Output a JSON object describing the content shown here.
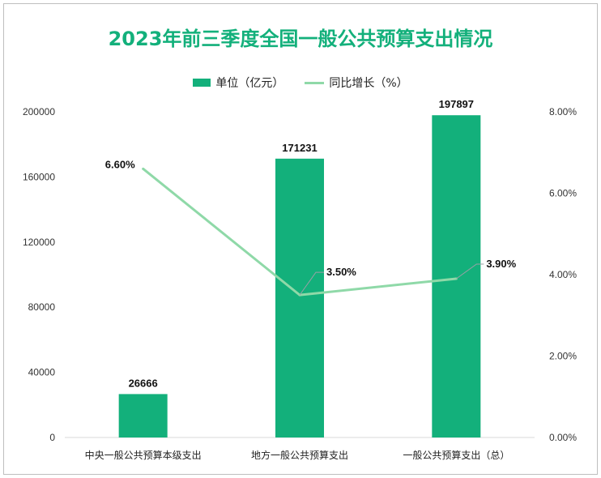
{
  "chart_data": {
    "type": "bar",
    "title": "2023年前三季度全国一般公共预算支出情况",
    "categories": [
      "中央一般公共预算本级支出",
      "地方一般公共预算支出",
      "一般公共预算支出（总）"
    ],
    "series": [
      {
        "name": "单位（亿元）",
        "type": "bar",
        "axis": "left",
        "values": [
          26666,
          171231,
          197897
        ],
        "labels": [
          "26666",
          "171231",
          "197897"
        ]
      },
      {
        "name": "同比增长（%）",
        "type": "line",
        "axis": "right",
        "values": [
          6.6,
          3.5,
          3.9
        ],
        "labels": [
          "6.60%",
          "3.50%",
          "3.90%"
        ]
      }
    ],
    "y_left": {
      "range": [
        0,
        200000
      ],
      "ticks": [
        "0",
        "40000",
        "80000",
        "120000",
        "160000",
        "200000"
      ]
    },
    "y_right": {
      "range": [
        0,
        8
      ],
      "ticks": [
        "0.00%",
        "2.00%",
        "4.00%",
        "6.00%",
        "8.00%"
      ]
    },
    "legend_position": "top",
    "grid": false,
    "colors": {
      "bar": "#13b07b",
      "line": "#8fd9a8",
      "title": "#13b07b"
    }
  }
}
